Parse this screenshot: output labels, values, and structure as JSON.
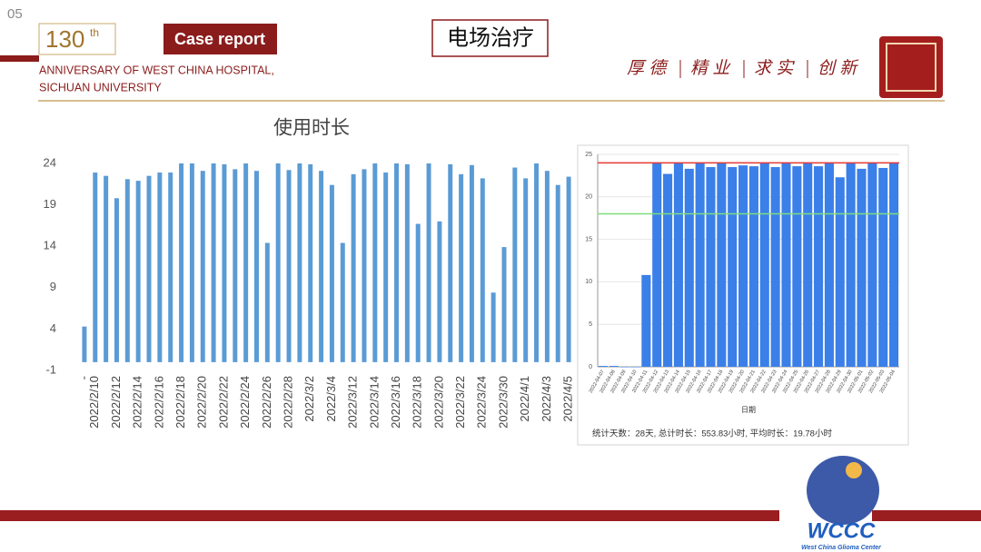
{
  "header": {
    "page_number": "05",
    "anniversary_number": "130",
    "anniversary_sup": "th",
    "line1": "ANNIVERSARY OF WEST CHINA HOSPITAL,",
    "line2": "SICHUAN UNIVERSITY",
    "badge": "Case report",
    "title": "电场治疗",
    "motto": [
      "厚 德",
      "精 业",
      "求 实",
      "创 新"
    ]
  },
  "logo": {
    "acronym": "WCCC",
    "name": "West China Glioma Center"
  },
  "chart_data": [
    {
      "type": "bar",
      "title": "使用时长",
      "color": "#5b9bd5",
      "categories": [
        "-",
        "2022/2/10",
        null,
        "2022/2/12",
        null,
        "2022/2/14",
        null,
        "2022/2/16",
        null,
        "2022/2/18",
        null,
        "2022/2/20",
        null,
        "2022/2/22",
        null,
        "2022/2/24",
        null,
        "2022/2/26",
        null,
        "2022/2/28",
        null,
        "2022/3/2",
        null,
        "2022/3/4",
        null,
        "2022/3/12",
        null,
        "2022/3/14",
        null,
        "2022/3/16",
        null,
        "2022/3/18",
        null,
        "2022/3/20",
        null,
        "2022/3/22",
        null,
        "2022/3/24",
        null,
        "2022/3/30",
        null,
        "2022/4/1",
        null,
        "2022/4/3",
        null,
        "2022/4/5"
      ],
      "values": [
        4.3,
        22.9,
        22.5,
        19.8,
        22.1,
        21.9,
        22.5,
        22.9,
        22.9,
        24,
        24,
        23.1,
        24,
        23.9,
        23.3,
        24,
        23.1,
        14.4,
        24,
        23.2,
        24,
        23.9,
        23.1,
        21.4,
        14.4,
        22.7,
        23.3,
        24,
        22.9,
        24,
        23.9,
        16.7,
        24,
        17,
        23.9,
        22.7,
        23.8,
        22.2,
        8.4,
        13.9,
        23.5,
        22.2,
        24,
        23.1,
        21.4,
        22.4
      ],
      "ylim": [
        -1,
        24
      ],
      "yticks": [
        -1,
        4,
        9,
        14,
        19,
        24
      ],
      "grid": true
    },
    {
      "type": "bar",
      "x_label": "日期",
      "note": "统计天数：28天, 总计时长：553.83小时, 平均时长：19.78小时",
      "color": "#3b7fe9",
      "categories": [
        "2022-04-07",
        "2022-04-08",
        "2022-04-09",
        "2022-04-10",
        "2022-04-11",
        "2022-04-12",
        "2022-04-13",
        "2022-04-14",
        "2022-04-15",
        "2022-04-16",
        "2022-04-17",
        "2022-04-18",
        "2022-04-19",
        "2022-04-20",
        "2022-04-21",
        "2022-04-22",
        "2022-04-23",
        "2022-04-24",
        "2022-04-25",
        "2022-04-26",
        "2022-04-27",
        "2022-04-28",
        "2022-04-29",
        "2022-04-30",
        "2022-05-01",
        "2022-05-02",
        "2022-05-03",
        "2022-05-04"
      ],
      "values": [
        0.1,
        0.1,
        0,
        0,
        10.8,
        24,
        22.7,
        24,
        23.3,
        24,
        23.5,
        24,
        23.5,
        23.7,
        23.6,
        24,
        23.5,
        24,
        23.6,
        24,
        23.6,
        24,
        22.3,
        24,
        23.3,
        24,
        23.4,
        24
      ],
      "ylim": [
        0,
        25
      ],
      "yticks": [
        0,
        5,
        10,
        15,
        20,
        25
      ],
      "grid": true,
      "reference_lines": [
        {
          "value": 24,
          "color": "#e53935"
        },
        {
          "value": 18,
          "color": "#7ddc7d"
        }
      ]
    }
  ]
}
